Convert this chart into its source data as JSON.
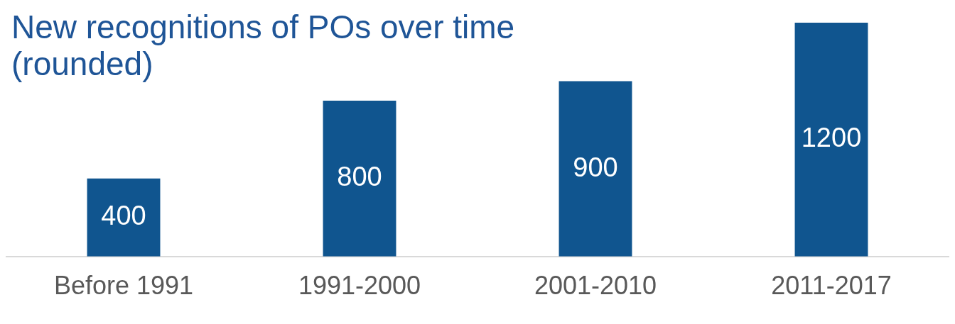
{
  "chart_data": {
    "type": "bar",
    "title": "New recognitions of POs over time (rounded)",
    "categories": [
      "Before 1991",
      "1991-2000",
      "2001-2010",
      "2011-2017"
    ],
    "values": [
      400,
      800,
      900,
      1200
    ],
    "color": "#10558f",
    "data_labels": true,
    "grid": false,
    "legend": false
  }
}
